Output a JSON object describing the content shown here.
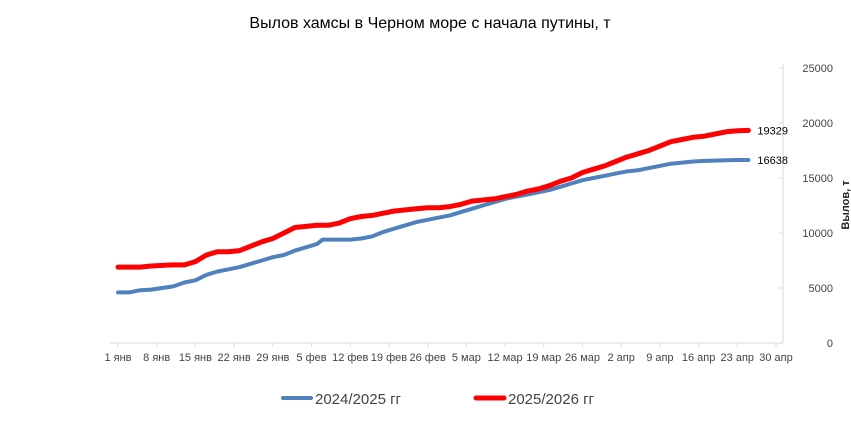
{
  "chart_data": {
    "type": "line",
    "title": "Вылов хамсы в Черном море с начала путины, т",
    "ylabel": "Вылов, т",
    "xlabel": "",
    "x_ticks": [
      "1 янв",
      "8 янв",
      "15 янв",
      "22 янв",
      "29 янв",
      "5 фев",
      "12 фев",
      "19 фев",
      "26 фев",
      "5 мар",
      "12 мар",
      "19 мар",
      "26 мар",
      "2 апр",
      "9 апр",
      "16 апр",
      "23 апр",
      "30 апр"
    ],
    "y_ticks": [
      "0",
      "5000",
      "10000",
      "15000",
      "20000",
      "25000"
    ],
    "ylim": [
      0,
      25000
    ],
    "x_range_days": [
      0,
      119
    ],
    "grid": false,
    "legend_position": "bottom",
    "series": [
      {
        "name": "2024/2025 гг",
        "color": "#4f81bd",
        "end_label": "16638",
        "points": [
          [
            0,
            4600
          ],
          [
            2,
            4600
          ],
          [
            4,
            4800
          ],
          [
            6,
            4850
          ],
          [
            8,
            5000
          ],
          [
            10,
            5150
          ],
          [
            12,
            5500
          ],
          [
            14,
            5700
          ],
          [
            16,
            6200
          ],
          [
            18,
            6500
          ],
          [
            20,
            6700
          ],
          [
            22,
            6900
          ],
          [
            24,
            7200
          ],
          [
            26,
            7500
          ],
          [
            28,
            7800
          ],
          [
            30,
            8000
          ],
          [
            32,
            8400
          ],
          [
            34,
            8700
          ],
          [
            36,
            9000
          ],
          [
            37,
            9400
          ],
          [
            39,
            9400
          ],
          [
            42,
            9400
          ],
          [
            44,
            9500
          ],
          [
            46,
            9700
          ],
          [
            48,
            10100
          ],
          [
            50,
            10400
          ],
          [
            52,
            10700
          ],
          [
            54,
            11000
          ],
          [
            56,
            11200
          ],
          [
            58,
            11400
          ],
          [
            60,
            11600
          ],
          [
            62,
            11900
          ],
          [
            64,
            12200
          ],
          [
            66,
            12500
          ],
          [
            68,
            12800
          ],
          [
            70,
            13100
          ],
          [
            72,
            13300
          ],
          [
            74,
            13500
          ],
          [
            76,
            13700
          ],
          [
            78,
            13900
          ],
          [
            80,
            14200
          ],
          [
            82,
            14500
          ],
          [
            84,
            14800
          ],
          [
            86,
            15000
          ],
          [
            88,
            15200
          ],
          [
            90,
            15400
          ],
          [
            92,
            15600
          ],
          [
            94,
            15700
          ],
          [
            96,
            15900
          ],
          [
            98,
            16100
          ],
          [
            100,
            16300
          ],
          [
            102,
            16400
          ],
          [
            104,
            16500
          ],
          [
            106,
            16550
          ],
          [
            108,
            16580
          ],
          [
            110,
            16620
          ],
          [
            112,
            16638
          ],
          [
            114,
            16638
          ]
        ]
      },
      {
        "name": "2025/2026 гг",
        "color": "#ff0000",
        "end_label": "19329",
        "points": [
          [
            0,
            6900
          ],
          [
            2,
            6900
          ],
          [
            4,
            6900
          ],
          [
            6,
            7000
          ],
          [
            8,
            7050
          ],
          [
            10,
            7100
          ],
          [
            12,
            7100
          ],
          [
            14,
            7400
          ],
          [
            16,
            8000
          ],
          [
            18,
            8300
          ],
          [
            20,
            8300
          ],
          [
            22,
            8400
          ],
          [
            24,
            8800
          ],
          [
            26,
            9200
          ],
          [
            28,
            9500
          ],
          [
            30,
            10000
          ],
          [
            32,
            10500
          ],
          [
            34,
            10600
          ],
          [
            36,
            10700
          ],
          [
            38,
            10700
          ],
          [
            40,
            10900
          ],
          [
            42,
            11300
          ],
          [
            44,
            11500
          ],
          [
            46,
            11600
          ],
          [
            48,
            11800
          ],
          [
            50,
            12000
          ],
          [
            52,
            12100
          ],
          [
            54,
            12200
          ],
          [
            56,
            12300
          ],
          [
            58,
            12300
          ],
          [
            60,
            12400
          ],
          [
            62,
            12600
          ],
          [
            64,
            12900
          ],
          [
            66,
            13000
          ],
          [
            68,
            13100
          ],
          [
            70,
            13300
          ],
          [
            72,
            13500
          ],
          [
            74,
            13800
          ],
          [
            76,
            14000
          ],
          [
            78,
            14300
          ],
          [
            80,
            14700
          ],
          [
            82,
            15000
          ],
          [
            84,
            15500
          ],
          [
            86,
            15800
          ],
          [
            88,
            16100
          ],
          [
            90,
            16500
          ],
          [
            92,
            16900
          ],
          [
            94,
            17200
          ],
          [
            96,
            17500
          ],
          [
            98,
            17900
          ],
          [
            100,
            18300
          ],
          [
            102,
            18500
          ],
          [
            104,
            18700
          ],
          [
            106,
            18800
          ],
          [
            108,
            19000
          ],
          [
            110,
            19200
          ],
          [
            112,
            19300
          ],
          [
            114,
            19329
          ]
        ]
      }
    ]
  }
}
